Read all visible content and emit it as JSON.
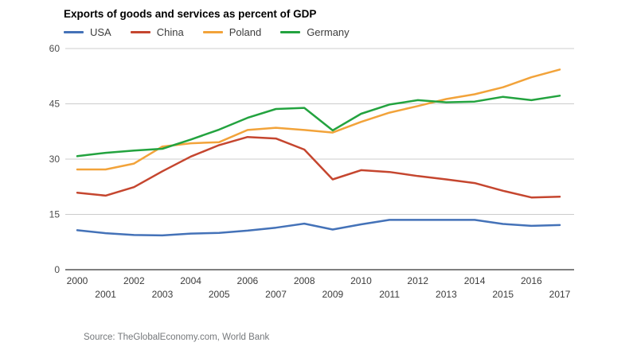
{
  "chart_data": {
    "type": "line",
    "title": "Exports of goods and services as percent of GDP",
    "x": [
      2000,
      2001,
      2002,
      2003,
      2004,
      2005,
      2006,
      2007,
      2008,
      2009,
      2010,
      2011,
      2012,
      2013,
      2014,
      2015,
      2016,
      2017
    ],
    "series": [
      {
        "name": "USA",
        "color": "#4472b8",
        "values": [
          10.7,
          9.9,
          9.4,
          9.3,
          9.8,
          10.0,
          10.6,
          11.4,
          12.5,
          10.9,
          12.3,
          13.5,
          13.5,
          13.5,
          13.5,
          12.4,
          11.9,
          12.1
        ]
      },
      {
        "name": "China",
        "color": "#c5462f",
        "values": [
          20.9,
          20.1,
          22.4,
          26.7,
          30.7,
          33.8,
          36.0,
          35.6,
          32.6,
          24.5,
          27.0,
          26.5,
          25.4,
          24.5,
          23.5,
          21.4,
          19.6,
          19.8
        ]
      },
      {
        "name": "Poland",
        "color": "#f2a33a",
        "values": [
          27.2,
          27.2,
          28.8,
          33.4,
          34.3,
          34.6,
          37.9,
          38.5,
          37.9,
          37.2,
          40.1,
          42.6,
          44.4,
          46.3,
          47.6,
          49.5,
          52.2,
          54.3
        ]
      },
      {
        "name": "Germany",
        "color": "#23a33f",
        "values": [
          30.8,
          31.7,
          32.3,
          32.8,
          35.3,
          38.0,
          41.2,
          43.6,
          43.9,
          37.8,
          42.3,
          44.8,
          46.0,
          45.4,
          45.6,
          46.9,
          46.0,
          47.2
        ]
      }
    ],
    "ylabel": "",
    "xlabel": "",
    "ylim": [
      0,
      60
    ],
    "yticks": [
      0,
      15,
      30,
      45,
      60
    ],
    "grid": true,
    "legend_position": "top",
    "x_label_layout": "staggered-two-rows"
  },
  "source": "Source: TheGlobalEconomy.com, World Bank",
  "colors": {
    "grid": "#cccccc",
    "axis": "#333333",
    "y_tick_label": "#4d4d4d",
    "x_tick_label": "#3c3c3c",
    "source_text": "#75787b",
    "background": "#ffffff"
  }
}
